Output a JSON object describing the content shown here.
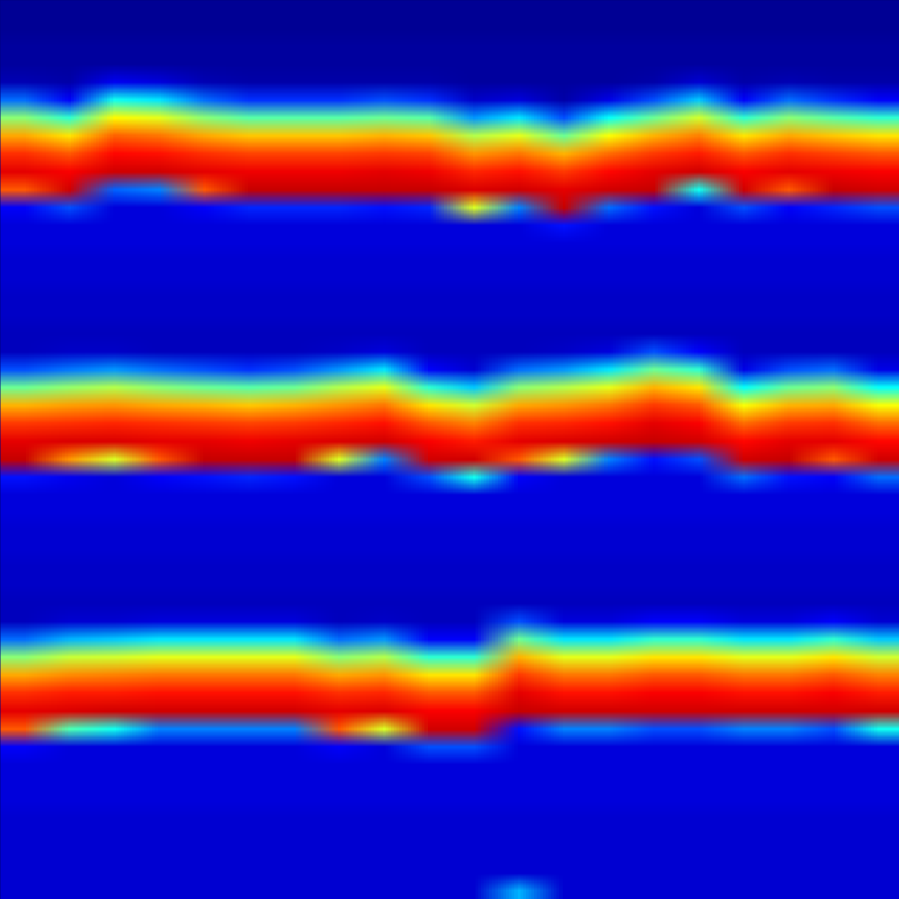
{
  "chart_data": {
    "type": "heatmap",
    "color": "jet",
    "tick_labels": false,
    "zlim": [
      0,
      1
    ],
    "cells": [
      [
        0.02,
        0.02,
        0.02,
        0.02,
        0.02,
        0.02,
        0.02,
        0.02,
        0.02,
        0.02,
        0.02,
        0.02,
        0.02,
        0.02,
        0.02,
        0.02,
        0.02,
        0.02,
        0.02,
        0.02
      ],
      [
        0.02,
        0.02,
        0.02,
        0.02,
        0.02,
        0.02,
        0.02,
        0.02,
        0.02,
        0.02,
        0.02,
        0.02,
        0.02,
        0.02,
        0.02,
        0.02,
        0.02,
        0.02,
        0.02,
        0.02
      ],
      [
        0.03,
        0.03,
        0.03,
        0.03,
        0.03,
        0.03,
        0.03,
        0.03,
        0.03,
        0.03,
        0.03,
        0.03,
        0.03,
        0.03,
        0.03,
        0.03,
        0.03,
        0.03,
        0.03,
        0.03
      ],
      [
        0.03,
        0.03,
        0.03,
        0.03,
        0.03,
        0.03,
        0.03,
        0.03,
        0.03,
        0.03,
        0.03,
        0.03,
        0.03,
        0.03,
        0.03,
        0.03,
        0.03,
        0.03,
        0.03,
        0.03
      ],
      [
        0.05,
        0.04,
        0.11,
        0.09,
        0.05,
        0.04,
        0.04,
        0.04,
        0.04,
        0.04,
        0.03,
        0.03,
        0.03,
        0.03,
        0.04,
        0.08,
        0.04,
        0.05,
        0.04,
        0.04
      ],
      [
        0.23,
        0.12,
        0.39,
        0.35,
        0.23,
        0.17,
        0.17,
        0.17,
        0.2,
        0.17,
        0.07,
        0.09,
        0.04,
        0.1,
        0.2,
        0.32,
        0.12,
        0.23,
        0.17,
        0.12
      ],
      [
        0.51,
        0.42,
        0.63,
        0.6,
        0.51,
        0.46,
        0.46,
        0.46,
        0.48,
        0.46,
        0.27,
        0.35,
        0.2,
        0.38,
        0.48,
        0.58,
        0.42,
        0.51,
        0.46,
        0.42
      ],
      [
        0.71,
        0.65,
        0.78,
        0.76,
        0.71,
        0.68,
        0.68,
        0.68,
        0.7,
        0.68,
        0.55,
        0.6,
        0.48,
        0.62,
        0.7,
        0.75,
        0.65,
        0.71,
        0.68,
        0.65
      ],
      [
        0.83,
        0.79,
        0.87,
        0.86,
        0.83,
        0.81,
        0.81,
        0.81,
        0.82,
        0.81,
        0.73,
        0.76,
        0.7,
        0.77,
        0.82,
        0.85,
        0.79,
        0.83,
        0.81,
        0.79
      ],
      [
        0.9,
        0.88,
        0.92,
        0.92,
        0.9,
        0.89,
        0.89,
        0.89,
        0.9,
        0.89,
        0.84,
        0.86,
        0.82,
        0.87,
        0.9,
        0.92,
        0.88,
        0.9,
        0.89,
        0.88
      ],
      [
        0.79,
        0.92,
        0.22,
        0.25,
        0.79,
        0.93,
        0.93,
        0.93,
        0.93,
        0.93,
        0.91,
        0.92,
        0.9,
        0.92,
        0.93,
        0.39,
        0.92,
        0.79,
        0.93,
        0.92
      ],
      [
        0.12,
        0.2,
        0.09,
        0.09,
        0.12,
        0.16,
        0.16,
        0.16,
        0.14,
        0.16,
        0.59,
        0.25,
        0.93,
        0.23,
        0.14,
        0.09,
        0.2,
        0.12,
        0.16,
        0.2
      ],
      [
        0.09,
        0.09,
        0.09,
        0.09,
        0.09,
        0.09,
        0.09,
        0.09,
        0.09,
        0.09,
        0.09,
        0.09,
        0.14,
        0.09,
        0.09,
        0.09,
        0.09,
        0.09,
        0.09,
        0.09
      ],
      [
        0.09,
        0.09,
        0.09,
        0.09,
        0.09,
        0.09,
        0.09,
        0.09,
        0.09,
        0.09,
        0.09,
        0.09,
        0.09,
        0.09,
        0.09,
        0.09,
        0.09,
        0.09,
        0.09,
        0.09
      ],
      [
        0.08,
        0.08,
        0.08,
        0.08,
        0.08,
        0.08,
        0.08,
        0.08,
        0.08,
        0.08,
        0.08,
        0.08,
        0.08,
        0.08,
        0.08,
        0.08,
        0.08,
        0.08,
        0.08,
        0.08
      ],
      [
        0.08,
        0.08,
        0.08,
        0.08,
        0.08,
        0.08,
        0.08,
        0.08,
        0.08,
        0.08,
        0.08,
        0.08,
        0.08,
        0.08,
        0.08,
        0.08,
        0.08,
        0.08,
        0.08,
        0.08
      ],
      [
        0.07,
        0.07,
        0.07,
        0.07,
        0.07,
        0.07,
        0.07,
        0.07,
        0.07,
        0.07,
        0.07,
        0.07,
        0.07,
        0.07,
        0.07,
        0.07,
        0.07,
        0.07,
        0.07,
        0.07
      ],
      [
        0.07,
        0.07,
        0.07,
        0.07,
        0.07,
        0.07,
        0.07,
        0.07,
        0.07,
        0.07,
        0.07,
        0.07,
        0.07,
        0.07,
        0.07,
        0.07,
        0.07,
        0.07,
        0.07,
        0.07
      ],
      [
        0.06,
        0.06,
        0.06,
        0.06,
        0.06,
        0.06,
        0.06,
        0.06,
        0.06,
        0.06,
        0.06,
        0.06,
        0.06,
        0.06,
        0.06,
        0.06,
        0.06,
        0.06,
        0.06,
        0.06
      ],
      [
        0.06,
        0.07,
        0.07,
        0.06,
        0.06,
        0.06,
        0.06,
        0.07,
        0.09,
        0.06,
        0.06,
        0.06,
        0.07,
        0.09,
        0.2,
        0.12,
        0.06,
        0.06,
        0.06,
        0.06
      ],
      [
        0.2,
        0.24,
        0.27,
        0.23,
        0.2,
        0.17,
        0.2,
        0.27,
        0.35,
        0.12,
        0.08,
        0.23,
        0.27,
        0.35,
        0.48,
        0.42,
        0.1,
        0.2,
        0.23,
        0.1
      ],
      [
        0.48,
        0.52,
        0.55,
        0.51,
        0.48,
        0.46,
        0.48,
        0.55,
        0.6,
        0.42,
        0.32,
        0.51,
        0.55,
        0.6,
        0.7,
        0.65,
        0.38,
        0.48,
        0.51,
        0.38
      ],
      [
        0.7,
        0.72,
        0.73,
        0.71,
        0.7,
        0.68,
        0.7,
        0.73,
        0.76,
        0.65,
        0.58,
        0.71,
        0.73,
        0.76,
        0.82,
        0.79,
        0.62,
        0.7,
        0.71,
        0.62
      ],
      [
        0.82,
        0.83,
        0.84,
        0.83,
        0.82,
        0.81,
        0.82,
        0.84,
        0.86,
        0.79,
        0.75,
        0.83,
        0.84,
        0.86,
        0.9,
        0.88,
        0.77,
        0.82,
        0.83,
        0.77
      ],
      [
        0.9,
        0.91,
        0.91,
        0.9,
        0.9,
        0.89,
        0.9,
        0.91,
        0.92,
        0.88,
        0.85,
        0.9,
        0.91,
        0.92,
        0.93,
        0.92,
        0.87,
        0.9,
        0.9,
        0.87
      ],
      [
        0.93,
        0.73,
        0.59,
        0.79,
        0.93,
        0.93,
        0.93,
        0.59,
        0.25,
        0.92,
        0.92,
        0.79,
        0.59,
        0.25,
        0.14,
        0.2,
        0.92,
        0.93,
        0.79,
        0.92
      ],
      [
        0.14,
        0.11,
        0.09,
        0.12,
        0.14,
        0.16,
        0.14,
        0.09,
        0.09,
        0.2,
        0.39,
        0.12,
        0.09,
        0.09,
        0.09,
        0.09,
        0.23,
        0.14,
        0.12,
        0.23
      ],
      [
        0.09,
        0.09,
        0.09,
        0.09,
        0.09,
        0.09,
        0.09,
        0.09,
        0.09,
        0.09,
        0.09,
        0.09,
        0.09,
        0.09,
        0.09,
        0.09,
        0.09,
        0.09,
        0.09,
        0.09
      ],
      [
        0.09,
        0.09,
        0.09,
        0.09,
        0.09,
        0.09,
        0.09,
        0.09,
        0.09,
        0.09,
        0.09,
        0.09,
        0.09,
        0.09,
        0.09,
        0.09,
        0.09,
        0.09,
        0.09,
        0.09
      ],
      [
        0.08,
        0.08,
        0.08,
        0.08,
        0.08,
        0.08,
        0.08,
        0.08,
        0.08,
        0.08,
        0.08,
        0.08,
        0.08,
        0.08,
        0.08,
        0.08,
        0.08,
        0.08,
        0.08,
        0.08
      ],
      [
        0.08,
        0.08,
        0.08,
        0.08,
        0.08,
        0.08,
        0.08,
        0.08,
        0.08,
        0.08,
        0.08,
        0.08,
        0.08,
        0.08,
        0.08,
        0.08,
        0.08,
        0.08,
        0.08,
        0.08
      ],
      [
        0.07,
        0.07,
        0.07,
        0.07,
        0.07,
        0.07,
        0.07,
        0.07,
        0.07,
        0.07,
        0.07,
        0.07,
        0.07,
        0.07,
        0.07,
        0.07,
        0.07,
        0.07,
        0.07,
        0.07
      ],
      [
        0.07,
        0.07,
        0.07,
        0.07,
        0.07,
        0.07,
        0.07,
        0.07,
        0.07,
        0.07,
        0.07,
        0.07,
        0.07,
        0.07,
        0.07,
        0.07,
        0.07,
        0.07,
        0.07,
        0.07
      ],
      [
        0.06,
        0.06,
        0.06,
        0.06,
        0.06,
        0.06,
        0.06,
        0.06,
        0.06,
        0.06,
        0.06,
        0.06,
        0.06,
        0.06,
        0.06,
        0.06,
        0.06,
        0.06,
        0.06,
        0.06
      ],
      [
        0.06,
        0.08,
        0.08,
        0.09,
        0.09,
        0.09,
        0.09,
        0.06,
        0.07,
        0.06,
        0.06,
        0.2,
        0.09,
        0.09,
        0.12,
        0.12,
        0.09,
        0.09,
        0.12,
        0.08
      ],
      [
        0.23,
        0.3,
        0.32,
        0.35,
        0.35,
        0.35,
        0.35,
        0.23,
        0.27,
        0.12,
        0.12,
        0.48,
        0.35,
        0.35,
        0.42,
        0.42,
        0.35,
        0.35,
        0.42,
        0.32
      ],
      [
        0.51,
        0.57,
        0.58,
        0.6,
        0.6,
        0.6,
        0.6,
        0.51,
        0.55,
        0.42,
        0.42,
        0.7,
        0.6,
        0.6,
        0.65,
        0.65,
        0.6,
        0.6,
        0.65,
        0.58
      ],
      [
        0.71,
        0.74,
        0.75,
        0.76,
        0.76,
        0.76,
        0.76,
        0.71,
        0.73,
        0.65,
        0.65,
        0.82,
        0.76,
        0.76,
        0.79,
        0.79,
        0.76,
        0.76,
        0.79,
        0.75
      ],
      [
        0.83,
        0.85,
        0.85,
        0.86,
        0.86,
        0.86,
        0.86,
        0.83,
        0.84,
        0.79,
        0.79,
        0.9,
        0.86,
        0.86,
        0.88,
        0.88,
        0.86,
        0.86,
        0.88,
        0.85
      ],
      [
        0.9,
        0.91,
        0.92,
        0.92,
        0.92,
        0.92,
        0.92,
        0.9,
        0.91,
        0.88,
        0.88,
        0.93,
        0.92,
        0.92,
        0.92,
        0.92,
        0.92,
        0.92,
        0.92,
        0.92
      ],
      [
        0.79,
        0.45,
        0.39,
        0.25,
        0.25,
        0.25,
        0.25,
        0.79,
        0.59,
        0.92,
        0.92,
        0.14,
        0.25,
        0.25,
        0.2,
        0.2,
        0.25,
        0.25,
        0.2,
        0.39
      ],
      [
        0.12,
        0.09,
        0.09,
        0.09,
        0.09,
        0.09,
        0.09,
        0.12,
        0.09,
        0.2,
        0.2,
        0.09,
        0.09,
        0.09,
        0.09,
        0.09,
        0.09,
        0.09,
        0.09,
        0.09
      ],
      [
        0.09,
        0.09,
        0.09,
        0.09,
        0.09,
        0.09,
        0.09,
        0.09,
        0.09,
        0.09,
        0.09,
        0.09,
        0.09,
        0.09,
        0.09,
        0.09,
        0.09,
        0.09,
        0.09,
        0.09
      ],
      [
        0.09,
        0.09,
        0.09,
        0.09,
        0.09,
        0.09,
        0.09,
        0.09,
        0.09,
        0.09,
        0.09,
        0.09,
        0.09,
        0.09,
        0.09,
        0.09,
        0.09,
        0.09,
        0.09,
        0.09
      ],
      [
        0.09,
        0.09,
        0.09,
        0.09,
        0.09,
        0.09,
        0.09,
        0.09,
        0.09,
        0.09,
        0.09,
        0.09,
        0.09,
        0.09,
        0.09,
        0.09,
        0.09,
        0.09,
        0.09,
        0.09
      ],
      [
        0.08,
        0.08,
        0.08,
        0.08,
        0.08,
        0.08,
        0.08,
        0.08,
        0.08,
        0.08,
        0.08,
        0.08,
        0.08,
        0.08,
        0.08,
        0.08,
        0.08,
        0.08,
        0.08,
        0.08
      ],
      [
        0.08,
        0.08,
        0.08,
        0.08,
        0.08,
        0.08,
        0.08,
        0.08,
        0.08,
        0.08,
        0.08,
        0.08,
        0.08,
        0.08,
        0.08,
        0.08,
        0.08,
        0.08,
        0.08,
        0.08
      ],
      [
        0.08,
        0.08,
        0.08,
        0.08,
        0.08,
        0.08,
        0.08,
        0.08,
        0.08,
        0.08,
        0.08,
        0.08,
        0.08,
        0.08,
        0.08,
        0.08,
        0.08,
        0.08,
        0.08,
        0.08
      ],
      [
        0.08,
        0.08,
        0.08,
        0.08,
        0.08,
        0.08,
        0.08,
        0.08,
        0.08,
        0.08,
        0.08,
        0.08,
        0.08,
        0.08,
        0.08,
        0.08,
        0.08,
        0.08,
        0.08,
        0.08
      ],
      [
        0.08,
        0.08,
        0.08,
        0.08,
        0.08,
        0.08,
        0.08,
        0.08,
        0.08,
        0.08,
        0.08,
        0.3,
        0.08,
        0.08,
        0.08,
        0.08,
        0.08,
        0.08,
        0.08,
        0.08
      ]
    ]
  }
}
